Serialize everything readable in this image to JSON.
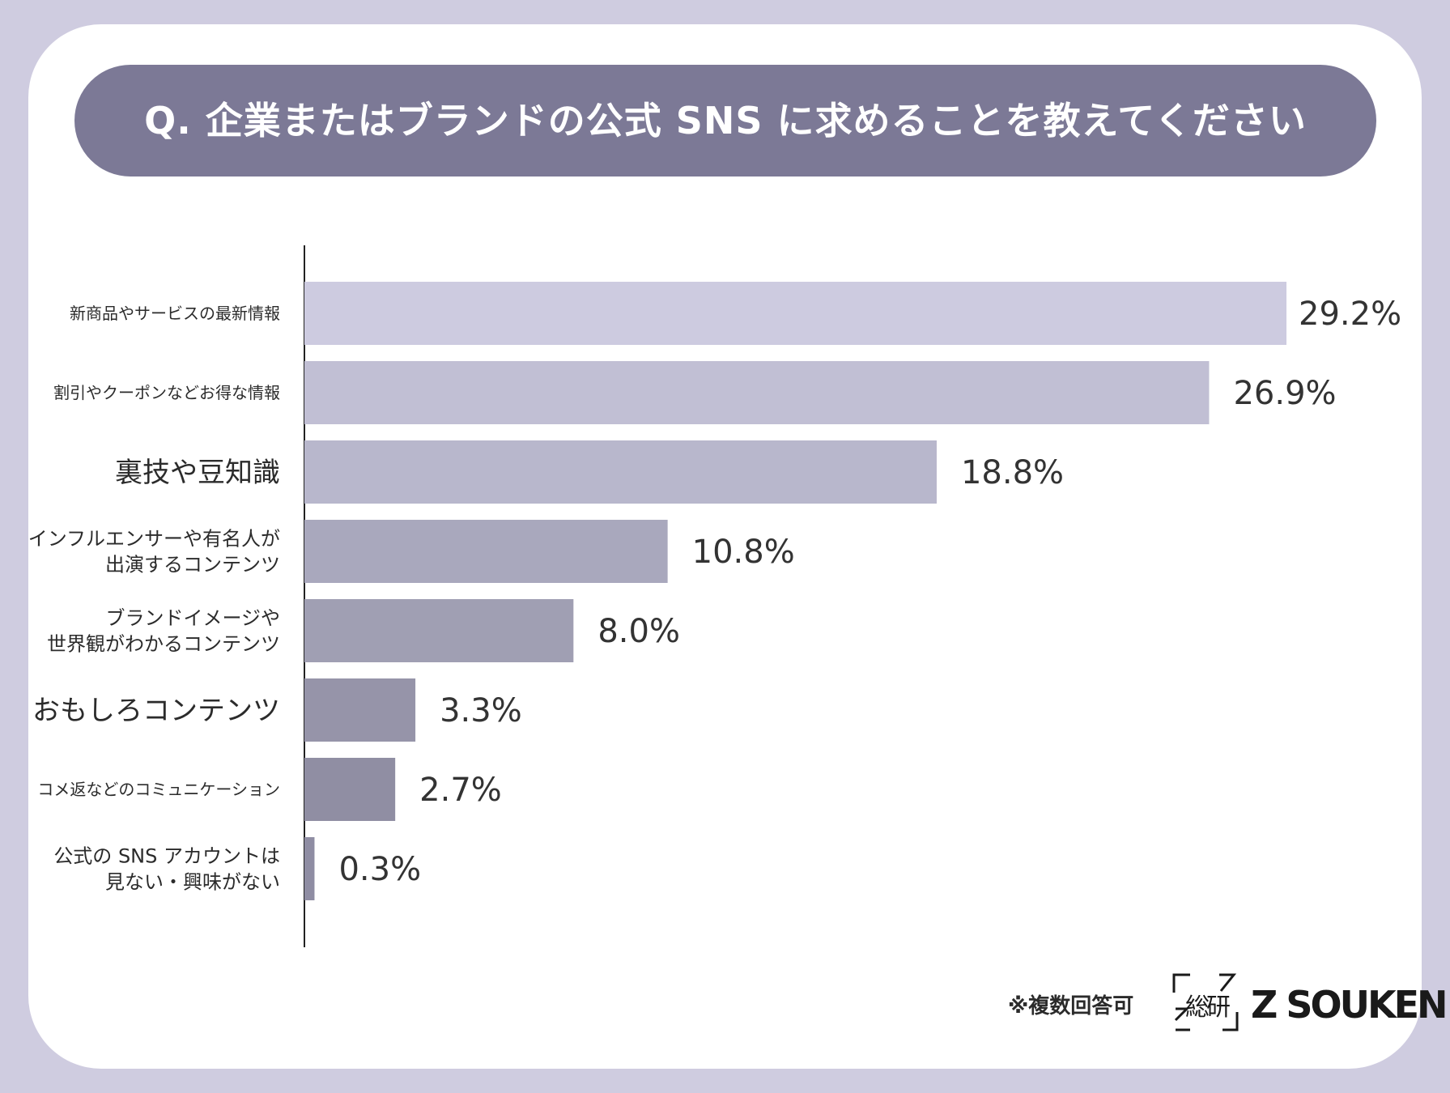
{
  "title": "Q. 企業またはブランドの公式 SNS に求めることを教えてください",
  "footer": {
    "note": "※複数回答可",
    "logo_kanji": "総研",
    "logo_text": "Z SOUKEN"
  },
  "colors": {
    "background": "#cfcce0",
    "card": "#ffffff",
    "title_pill": "#7c7996",
    "title_text": "#ffffff"
  },
  "chart_data": {
    "type": "bar",
    "orientation": "horizontal",
    "title": "Q. 企業またはブランドの公式 SNS に求めることを教えてください",
    "xlabel": "",
    "ylabel": "",
    "xlim": [
      0,
      29.2
    ],
    "grid": false,
    "legend": "none",
    "categories": [
      [
        "新商品やサービスの最新情報"
      ],
      [
        "割引やクーポンなどお得な情報"
      ],
      [
        "裏技や豆知識"
      ],
      [
        "インフルエンサーや有名人が",
        "出演するコンテンツ"
      ],
      [
        "ブランドイメージや",
        "世界観がわかるコンテンツ"
      ],
      [
        "おもしろコンテンツ"
      ],
      [
        "コメ返などのコミュニケーション"
      ],
      [
        "公式の SNS アカウントは",
        "見ない・興味がない"
      ]
    ],
    "label_emphasis": [
      "small",
      "small",
      "large",
      "medium",
      "medium",
      "large",
      "small",
      "medium"
    ],
    "values": [
      29.2,
      26.9,
      18.8,
      10.8,
      8.0,
      3.3,
      2.7,
      0.3
    ],
    "value_labels": [
      "29.2%",
      "26.9%",
      "18.8%",
      "10.8%",
      "8.0%",
      "3.3%",
      "2.7%",
      "0.3%"
    ],
    "bar_colors": [
      "#cdcbe0",
      "#c1bfd4",
      "#b8b7cc",
      "#a9a8bd",
      "#a09fb3",
      "#9694a9",
      "#908ea3",
      "#8f8da3"
    ]
  }
}
